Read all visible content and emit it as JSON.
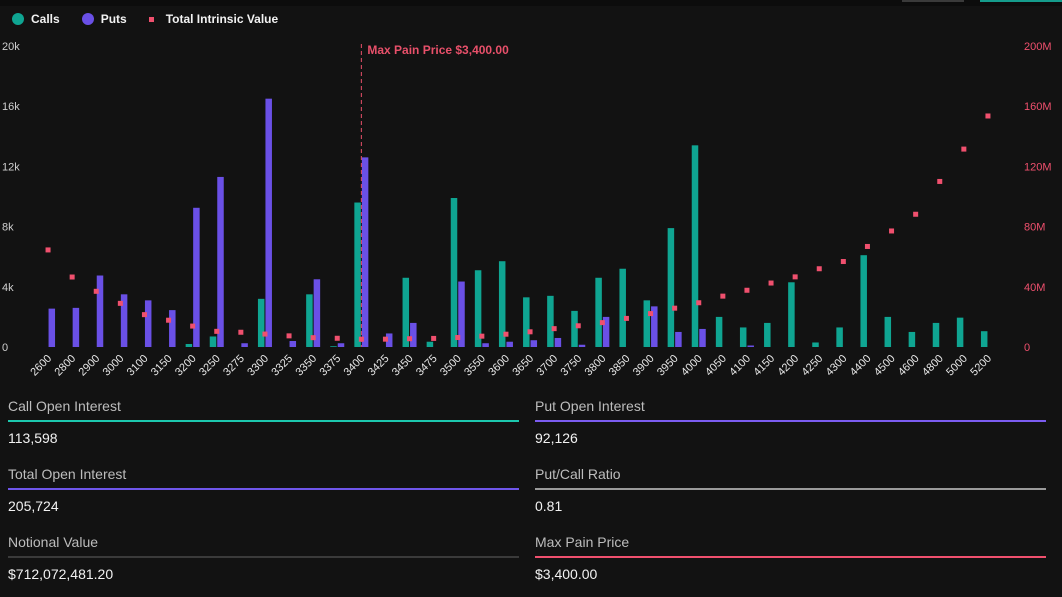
{
  "legend": {
    "calls_label": "Calls",
    "puts_label": "Puts",
    "tiv_label": "Total Intrinsic Value"
  },
  "colors": {
    "calls": "#0fa592",
    "puts": "#6a50e6",
    "tiv": "#f0506e",
    "max_pain": "#e8506a"
  },
  "chart_data": {
    "type": "bar",
    "categories": [
      "2600",
      "2800",
      "2900",
      "3000",
      "3100",
      "3150",
      "3200",
      "3250",
      "3275",
      "3300",
      "3325",
      "3350",
      "3375",
      "3400",
      "3425",
      "3450",
      "3475",
      "3500",
      "3550",
      "3600",
      "3650",
      "3700",
      "3750",
      "3800",
      "3850",
      "3900",
      "3950",
      "4000",
      "4050",
      "4100",
      "4150",
      "4200",
      "4250",
      "4300",
      "4400",
      "4500",
      "4600",
      "4800",
      "5000",
      "5200"
    ],
    "series": [
      {
        "name": "Calls",
        "axis": "left",
        "values": [
          0,
          0,
          0,
          0,
          0,
          0,
          200,
          700,
          0,
          3200,
          0,
          3500,
          50,
          9600,
          0,
          4600,
          350,
          9900,
          5100,
          5700,
          3300,
          3400,
          2400,
          4600,
          5200,
          3100,
          7900,
          13400,
          2000,
          1300,
          1600,
          4300,
          300,
          1300,
          6100,
          2000,
          1000,
          1600,
          1950,
          1050
        ]
      },
      {
        "name": "Puts",
        "axis": "left",
        "values": [
          2550,
          2600,
          4750,
          3500,
          3100,
          2450,
          9250,
          11300,
          250,
          16500,
          400,
          4500,
          250,
          12600,
          900,
          1600,
          0,
          4350,
          250,
          350,
          450,
          600,
          150,
          2000,
          0,
          2700,
          1000,
          1200,
          0,
          100,
          0,
          0,
          0,
          0,
          0,
          0,
          0,
          0,
          0,
          0
        ]
      },
      {
        "name": "Total Intrinsic Value",
        "axis": "right",
        "type": "scatter",
        "values": [
          64500000,
          46500000,
          37000000,
          29000000,
          21500000,
          17800000,
          13900000,
          10400000,
          9800000,
          8600000,
          7400000,
          6200000,
          5800000,
          5200000,
          5200000,
          5500000,
          5700000,
          6300000,
          7200000,
          8500000,
          10100000,
          12200000,
          14100000,
          16200000,
          19000000,
          22200000,
          25800000,
          29400000,
          33800000,
          37700000,
          42500000,
          46600000,
          52000000,
          56800000,
          66800000,
          77100000,
          88200000,
          110000000,
          131500000,
          153500000
        ]
      }
    ],
    "ylim": [
      0,
      20000
    ],
    "y_ticks": [
      "0",
      "4k",
      "8k",
      "12k",
      "16k",
      "20k"
    ],
    "y2lim": [
      0,
      200000000
    ],
    "y2_ticks": [
      "0",
      "40M",
      "80M",
      "120M",
      "160M",
      "200M"
    ],
    "grid": false,
    "legend": "top-left",
    "annotations": [
      {
        "category": "3400",
        "text": "Max Pain Price $3,400.00"
      }
    ]
  },
  "stats": [
    {
      "label": "Call Open Interest",
      "value": "113,598",
      "color": "#1cc8ae"
    },
    {
      "label": "Put Open Interest",
      "value": "92,126",
      "color": "#7b5cf0"
    },
    {
      "label": "Total Open Interest",
      "value": "205,724",
      "color": "#6f56ea"
    },
    {
      "label": "Put/Call Ratio",
      "value": "0.81",
      "color": "#9a9a9a"
    },
    {
      "label": "Notional Value",
      "value": "$712,072,481.20",
      "color": "#3a3a3a"
    },
    {
      "label": "Max Pain Price",
      "value": "$3,400.00",
      "color": "#f0506e"
    }
  ]
}
